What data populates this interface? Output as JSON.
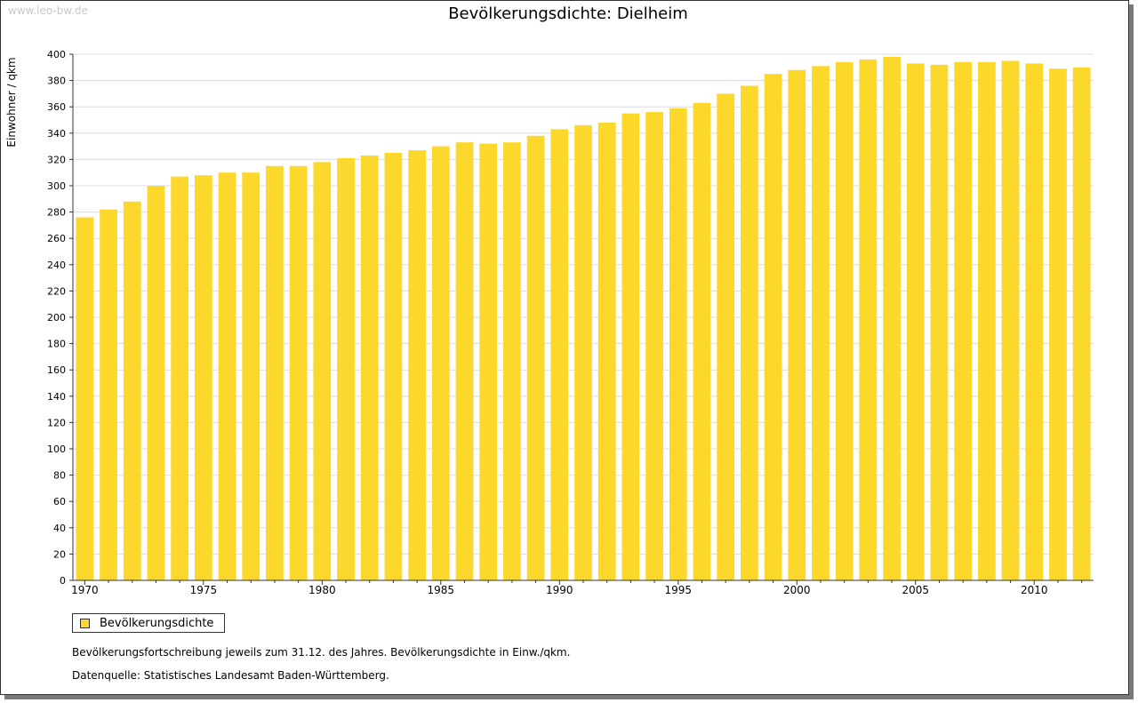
{
  "watermark": "www.leo-bw.de",
  "footnote": "Bevölkerungsfortschreibung jeweils zum 31.12. des Jahres. Bevölkerungsdichte in Einw./qkm.",
  "source": "Datenquelle: Statistisches Landesamt Baden-Württemberg.",
  "chart_data": {
    "type": "bar",
    "title": "Bevölkerungsdichte: Dielheim",
    "xlabel": "",
    "ylabel": "Einwohner / qkm",
    "ylim": [
      0,
      400
    ],
    "yticks": [
      0,
      20,
      40,
      60,
      80,
      100,
      120,
      140,
      160,
      180,
      200,
      220,
      240,
      260,
      280,
      300,
      320,
      340,
      360,
      380,
      400
    ],
    "xticks": [
      "1970",
      "1975",
      "1980",
      "1985",
      "1990",
      "1995",
      "2000",
      "2005",
      "2010"
    ],
    "grid": true,
    "legend": "bottom-left",
    "bar_color": "#fdd82c",
    "categories": [
      1970,
      1971,
      1972,
      1973,
      1974,
      1975,
      1976,
      1977,
      1978,
      1979,
      1980,
      1981,
      1982,
      1983,
      1984,
      1985,
      1986,
      1987,
      1988,
      1989,
      1990,
      1991,
      1992,
      1993,
      1994,
      1995,
      1996,
      1997,
      1998,
      1999,
      2000,
      2001,
      2002,
      2003,
      2004,
      2005,
      2006,
      2007,
      2008,
      2009,
      2010,
      2011,
      2012
    ],
    "series": [
      {
        "name": "Bevölkerungsdichte",
        "values": [
          276,
          282,
          288,
          300,
          307,
          308,
          310,
          310,
          315,
          315,
          318,
          321,
          323,
          325,
          327,
          330,
          333,
          332,
          333,
          338,
          343,
          346,
          348,
          355,
          356,
          359,
          363,
          370,
          376,
          385,
          388,
          391,
          394,
          396,
          398,
          393,
          392,
          394,
          394,
          395,
          393,
          389,
          390
        ]
      }
    ]
  }
}
